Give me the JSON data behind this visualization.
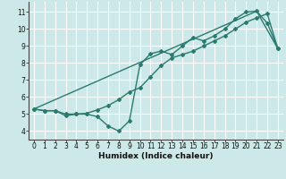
{
  "xlabel": "Humidex (Indice chaleur)",
  "background_color": "#cce8e8",
  "grid_color": "#ffffff",
  "line_color": "#2a7a6f",
  "xlim": [
    -0.5,
    23.5
  ],
  "ylim": [
    3.5,
    11.6
  ],
  "xticks": [
    0,
    1,
    2,
    3,
    4,
    5,
    6,
    7,
    8,
    9,
    10,
    11,
    12,
    13,
    14,
    15,
    16,
    17,
    18,
    19,
    20,
    21,
    22,
    23
  ],
  "yticks": [
    4,
    5,
    6,
    7,
    8,
    9,
    10,
    11
  ],
  "line1_x": [
    0,
    1,
    2,
    3,
    4,
    5,
    6,
    7,
    8,
    9,
    10,
    11,
    12,
    13,
    14,
    15,
    16,
    17,
    18,
    19,
    20,
    21,
    22,
    23
  ],
  "line1_y": [
    5.3,
    5.2,
    5.2,
    4.9,
    5.0,
    5.0,
    4.85,
    4.3,
    4.0,
    4.6,
    7.9,
    8.55,
    8.7,
    8.5,
    9.0,
    9.5,
    9.3,
    9.6,
    10.0,
    10.6,
    11.0,
    11.05,
    10.35,
    8.85
  ],
  "line2_x": [
    0,
    1,
    2,
    3,
    4,
    5,
    6,
    7,
    8,
    9,
    10,
    11,
    12,
    13,
    14,
    15,
    16,
    17,
    18,
    19,
    20,
    21,
    22,
    23
  ],
  "line2_y": [
    5.3,
    5.2,
    5.2,
    5.0,
    5.0,
    5.05,
    5.25,
    5.5,
    5.85,
    6.3,
    6.55,
    7.2,
    7.85,
    8.3,
    8.5,
    8.7,
    9.0,
    9.3,
    9.6,
    10.0,
    10.4,
    10.65,
    10.9,
    8.85
  ],
  "line3_x": [
    0,
    21,
    23
  ],
  "line3_y": [
    5.3,
    11.05,
    8.85
  ]
}
